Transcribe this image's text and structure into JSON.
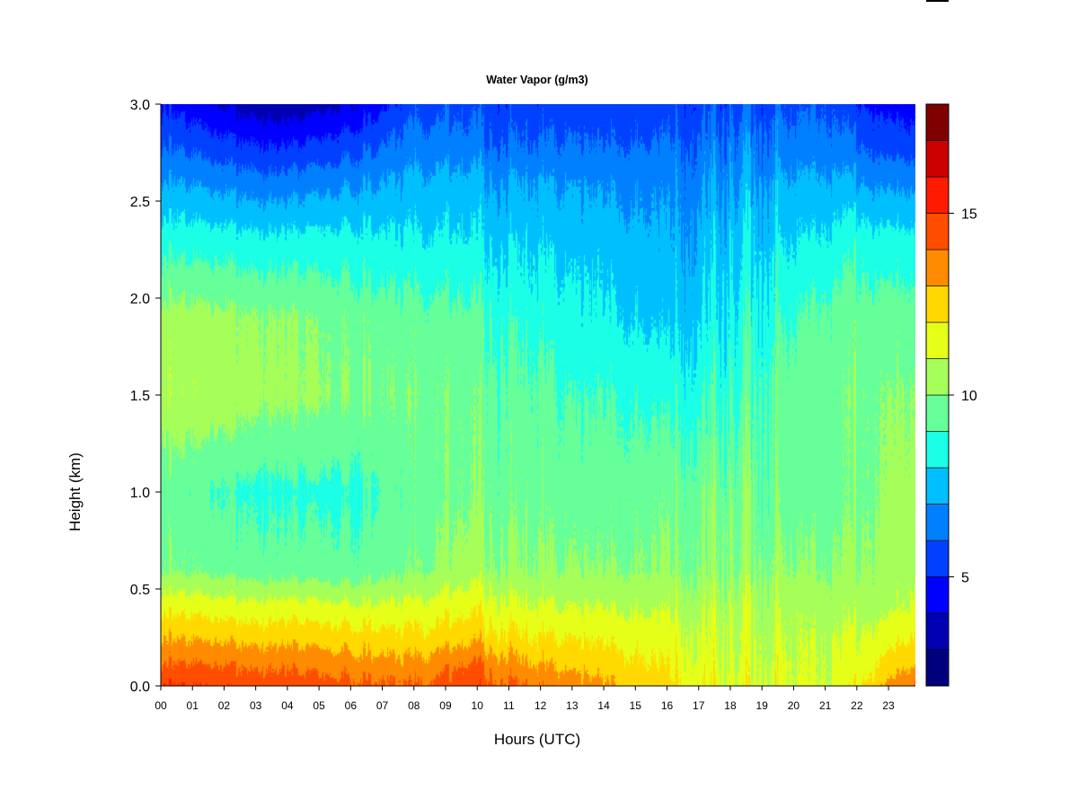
{
  "chart_data": {
    "type": "heatmap",
    "title": "Water Vapor (g/m3)",
    "xlabel": "Hours (UTC)",
    "ylabel": "Height (km)",
    "x_ticks": [
      "00",
      "01",
      "02",
      "03",
      "04",
      "05",
      "06",
      "07",
      "08",
      "09",
      "10",
      "11",
      "12",
      "13",
      "14",
      "15",
      "16",
      "17",
      "18",
      "19",
      "20",
      "21",
      "22",
      "23"
    ],
    "y_ticks": [
      "0.0",
      "0.5",
      "1.0",
      "1.5",
      "2.0",
      "2.5",
      "3.0"
    ],
    "xlim": [
      0,
      23.85
    ],
    "ylim": [
      0,
      3.0
    ],
    "colorbar": {
      "range": [
        2,
        18
      ],
      "ticks": [
        5,
        10,
        15
      ],
      "tick_labels": [
        "5",
        "10",
        "15"
      ],
      "levels": [
        2,
        3,
        4,
        5,
        6,
        7,
        8,
        9,
        10,
        11,
        12,
        13,
        14,
        15,
        16,
        17,
        18
      ],
      "colors": [
        "#00007f",
        "#0000b2",
        "#0000ff",
        "#0040ff",
        "#0080ff",
        "#00bfff",
        "#1affe6",
        "#66ff99",
        "#a6ff59",
        "#e6ff19",
        "#ffd900",
        "#ff8c00",
        "#ff4d00",
        "#ff1a00",
        "#cc0000",
        "#7f0000"
      ]
    },
    "profiles": {
      "description_hours": [
        0,
        2,
        4,
        6,
        8,
        10,
        12,
        13,
        14,
        16,
        17,
        18,
        20,
        21,
        22,
        23,
        23.85
      ],
      "heights_km": [
        0.0,
        0.1,
        0.25,
        0.4,
        0.6,
        1.0,
        1.5,
        1.9,
        2.3,
        2.6,
        2.8,
        3.0
      ],
      "values": [
        [
          15.0,
          14.2,
          13.0,
          11.8,
          10.0,
          9.5,
          10.8,
          10.5,
          8.6,
          7.1,
          6.0,
          5.0
        ],
        [
          14.8,
          14.0,
          12.7,
          11.5,
          9.6,
          8.9,
          10.6,
          10.2,
          8.4,
          6.6,
          5.2,
          3.8
        ],
        [
          14.5,
          13.8,
          12.6,
          11.4,
          9.4,
          8.7,
          10.2,
          10.0,
          8.2,
          6.3,
          4.8,
          3.2
        ],
        [
          14.3,
          13.6,
          12.5,
          11.3,
          9.4,
          8.8,
          10.0,
          9.7,
          8.4,
          6.8,
          5.5,
          4.0
        ],
        [
          14.0,
          13.3,
          12.2,
          11.3,
          9.8,
          9.5,
          9.8,
          9.4,
          8.1,
          7.2,
          6.4,
          5.6
        ],
        [
          14.6,
          14.1,
          12.6,
          11.7,
          10.4,
          9.8,
          9.6,
          9.1,
          8.0,
          7.2,
          6.2,
          5.6
        ],
        [
          13.8,
          13.0,
          12.0,
          11.1,
          10.1,
          9.6,
          9.3,
          8.6,
          7.8,
          7.0,
          6.0,
          5.4
        ],
        [
          13.5,
          12.8,
          11.9,
          11.0,
          10.0,
          9.5,
          8.9,
          8.3,
          7.6,
          6.9,
          6.0,
          5.5
        ],
        [
          13.1,
          12.5,
          11.7,
          10.9,
          9.9,
          9.4,
          8.9,
          8.1,
          7.5,
          6.7,
          5.9,
          5.3
        ],
        [
          12.2,
          11.9,
          11.4,
          10.8,
          10.0,
          9.6,
          8.6,
          7.6,
          7.1,
          6.6,
          6.0,
          5.4
        ],
        [
          12.0,
          11.6,
          11.3,
          10.9,
          10.2,
          9.9,
          8.9,
          8.1,
          7.5,
          6.9,
          6.3,
          5.7
        ],
        [
          11.5,
          11.3,
          11.1,
          10.8,
          10.2,
          9.8,
          9.0,
          8.4,
          7.8,
          7.1,
          6.5,
          5.8
        ],
        [
          11.2,
          11.1,
          11.0,
          10.7,
          10.1,
          9.6,
          9.5,
          9.0,
          8.0,
          7.2,
          6.4,
          5.8
        ],
        [
          11.1,
          11.0,
          10.9,
          10.6,
          10.0,
          9.6,
          9.6,
          9.3,
          8.2,
          7.2,
          6.4,
          5.9
        ],
        [
          11.8,
          11.4,
          11.0,
          10.6,
          10.1,
          9.7,
          9.8,
          9.5,
          8.6,
          7.0,
          6.0,
          5.1
        ],
        [
          13.2,
          12.5,
          11.6,
          10.8,
          10.4,
          10.2,
          10.0,
          9.5,
          8.4,
          6.8,
          5.5,
          4.6
        ],
        [
          14.0,
          13.0,
          12.0,
          11.2,
          10.6,
          10.3,
          10.0,
          9.4,
          8.3,
          6.6,
          5.4,
          4.5
        ]
      ]
    }
  }
}
